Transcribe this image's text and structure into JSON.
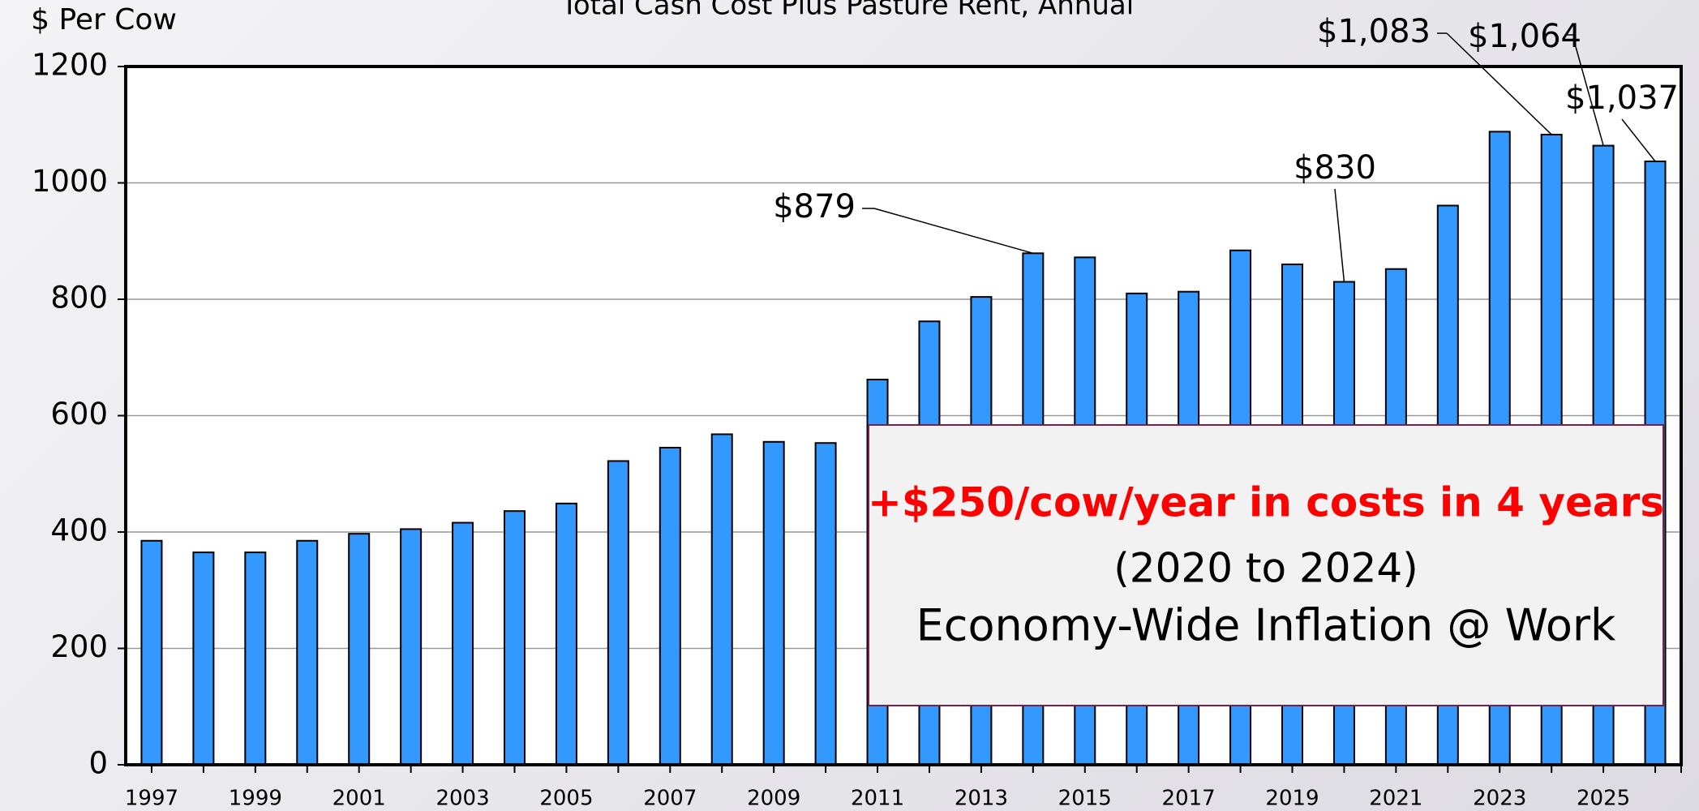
{
  "chart_data": {
    "type": "bar",
    "title": "Total Cash Cost Plus Pasture Rent, Annual",
    "y_label": "$ Per Cow",
    "categories": [
      "1997",
      null,
      "1999",
      null,
      "2001",
      null,
      "2003",
      null,
      "2005",
      null,
      "2007",
      null,
      "2009",
      null,
      "2011",
      null,
      "2013",
      null,
      "2015",
      null,
      "2017",
      null,
      "2019",
      null,
      "2021",
      null,
      "2023",
      null,
      "2025",
      null
    ],
    "values": [
      385,
      365,
      365,
      385,
      397,
      405,
      416,
      436,
      449,
      522,
      545,
      568,
      555,
      553,
      662,
      762,
      804,
      879,
      872,
      810,
      813,
      884,
      860,
      830,
      852,
      961,
      1088,
      1083,
      1064,
      1037
    ],
    "value_labels": [
      null,
      null,
      null,
      null,
      null,
      null,
      null,
      null,
      null,
      null,
      null,
      null,
      null,
      null,
      null,
      null,
      null,
      "$879",
      null,
      null,
      null,
      null,
      null,
      "$830",
      null,
      null,
      null,
      "$1,083",
      "$1,064",
      "$1,037"
    ],
    "color": "#3399ff",
    "ylim": [
      0,
      1200
    ],
    "yticks": [
      0,
      200,
      400,
      600,
      800,
      1000,
      1200
    ],
    "grid": true,
    "annotation": {
      "headline": "+$250/cow/year in costs in 4 years",
      "period": "(2020 to 2024)",
      "note": "Economy-Wide Inflation @ Work"
    }
  }
}
